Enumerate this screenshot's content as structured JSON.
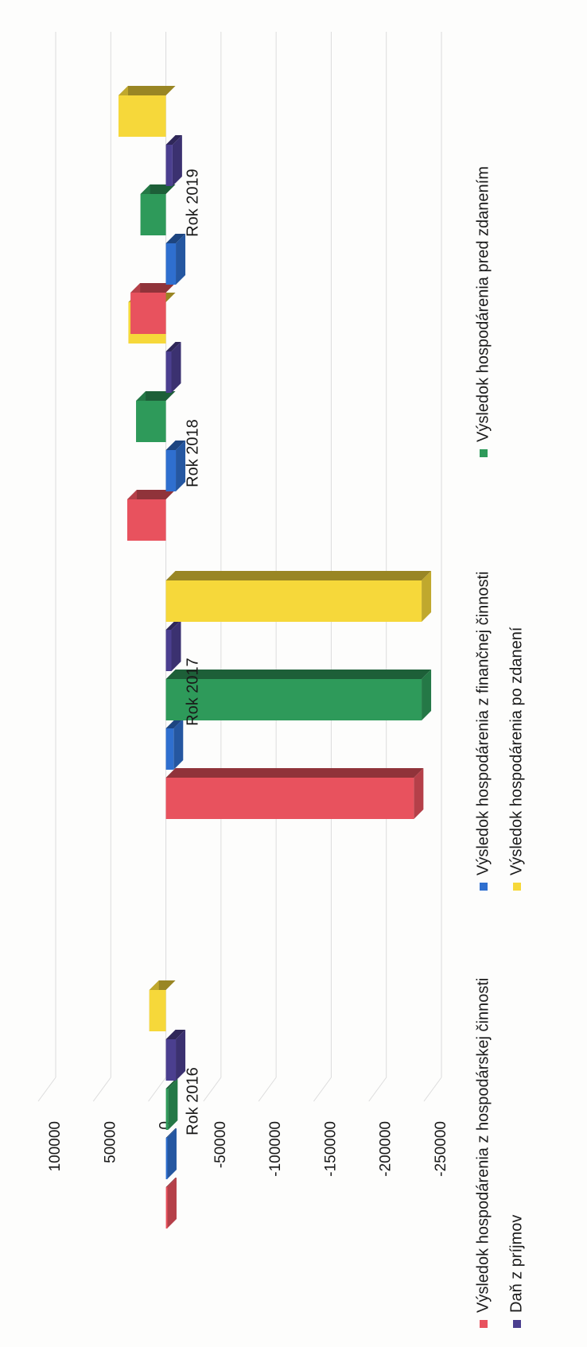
{
  "chart_data": {
    "type": "bar",
    "orientation": "rotated-90-ccw",
    "categories": [
      "Rok 2016",
      "Rok 2017",
      "Rok 2018",
      "Rok 2019"
    ],
    "series": [
      {
        "name": "Výsledok hospodárenia z hospodárskej činnosti",
        "color": "#e8525e",
        "values": [
          -1000,
          -225000,
          35000,
          32000
        ]
      },
      {
        "name": "Výsledok hospodárenia z finančnej činnosti",
        "color": "#2f6fcf",
        "values": [
          -1000,
          -7000,
          -9000,
          -9000
        ]
      },
      {
        "name": "Výsledok hospodárenia pred zdanením",
        "color": "#2e9a5a",
        "values": [
          -2000,
          -232000,
          27000,
          23000
        ]
      },
      {
        "name": "Daň z príjmov",
        "color": "#4b3f8f",
        "values": [
          -9000,
          -5000,
          -5000,
          -6000
        ]
      },
      {
        "name": "Výsledok hospodárenia po zdanení",
        "color": "#f6d83a",
        "values": [
          15000,
          -232000,
          34000,
          43000
        ]
      }
    ],
    "yticks": [
      100000,
      50000,
      0,
      -50000,
      -100000,
      -150000,
      -200000,
      -250000
    ],
    "ytick_labels": [
      "100000",
      "50000",
      "0",
      "-50000",
      "-100000",
      "-150000",
      "-200000",
      "-250000"
    ],
    "ylim": [
      -250000,
      100000
    ],
    "grid": true,
    "legend": "bottom",
    "title": "",
    "xlabel": "",
    "ylabel": ""
  }
}
